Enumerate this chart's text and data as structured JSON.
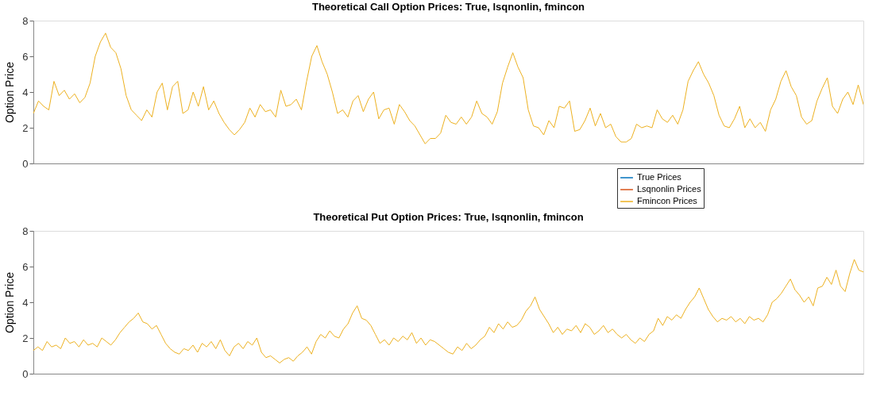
{
  "chart_data": [
    {
      "type": "line",
      "title": "Theoretical Call Option Prices: True, lsqnonlin, fmincon",
      "ylabel": "Option Price",
      "ylim": [
        0,
        8
      ],
      "yticks": [
        0,
        2,
        4,
        6,
        8
      ],
      "grid": false,
      "tick_labels": "y",
      "legend": "bottom right",
      "line_style": "solid",
      "marker": "none",
      "categories": [
        null,
        null,
        null,
        null,
        null,
        null,
        null,
        null,
        null,
        null,
        null,
        null,
        null,
        null,
        null,
        null,
        null,
        null,
        null,
        null,
        null,
        null,
        null,
        null,
        null,
        null,
        null,
        null,
        null,
        null,
        null,
        null,
        null,
        null,
        null,
        null,
        null,
        null,
        null,
        null,
        null,
        null,
        null,
        null,
        null,
        null,
        null,
        null,
        null,
        null,
        null,
        null,
        null,
        null,
        null,
        null,
        null,
        null,
        null,
        null,
        null,
        null,
        null,
        null,
        null,
        null,
        null,
        null,
        null,
        null,
        null,
        null,
        null,
        null,
        null,
        null,
        null,
        null,
        null,
        null,
        null,
        null,
        null,
        null,
        null,
        null,
        null,
        null,
        null,
        null,
        null,
        null,
        null,
        null,
        null,
        null,
        null,
        null,
        null,
        null,
        null,
        null,
        null,
        null,
        null,
        null,
        null,
        null,
        null,
        null,
        null,
        null,
        null,
        null,
        null,
        null,
        null,
        null,
        null,
        null,
        null,
        null,
        null,
        null,
        null,
        null,
        null,
        null,
        null,
        null,
        null,
        null,
        null,
        null,
        null,
        null,
        null,
        null,
        null,
        null,
        null,
        null,
        null,
        null,
        null,
        null,
        null,
        null,
        null,
        null,
        null,
        null,
        null,
        null,
        null,
        null,
        null,
        null,
        null,
        null,
        null,
        null
      ],
      "series": [
        {
          "name": "True Prices",
          "color": "#0072bd",
          "values": [
            null,
            null,
            null,
            null,
            null,
            null,
            null,
            null,
            null,
            null,
            null,
            null,
            null,
            null,
            null,
            null,
            null,
            null,
            null,
            null,
            null,
            null,
            null,
            null,
            null,
            null,
            null,
            null,
            null,
            null,
            null,
            null,
            null,
            null,
            null,
            null,
            null,
            null,
            null,
            null,
            null,
            null,
            null,
            null,
            null,
            null,
            null,
            null,
            null,
            null,
            null,
            null,
            null,
            null,
            null,
            null,
            null,
            null,
            null,
            null,
            null,
            null,
            null,
            null,
            null,
            null,
            null,
            null,
            null,
            null,
            null,
            null,
            null,
            null,
            null,
            null,
            null,
            null,
            null,
            null,
            null,
            null,
            null,
            null,
            null,
            null,
            null,
            null,
            null,
            null,
            null,
            null,
            null,
            null,
            null,
            null,
            null,
            null,
            null,
            null,
            null,
            null,
            null,
            null,
            null,
            null,
            null,
            null,
            null,
            null,
            null,
            null,
            null,
            null,
            null,
            null,
            null,
            null,
            null,
            null,
            null,
            null,
            null,
            null,
            null,
            null,
            null,
            null,
            null,
            null,
            null,
            null,
            null,
            null,
            null,
            null,
            null,
            null,
            null,
            null,
            null,
            null,
            null,
            null,
            null,
            null,
            null,
            null,
            null,
            null,
            null,
            null,
            null,
            null,
            null,
            null,
            null,
            null,
            null,
            null,
            null,
            null
          ]
        },
        {
          "name": "Lsqnonlin Prices",
          "color": "#d95319",
          "values": [
            null,
            null,
            null,
            null,
            null,
            null,
            null,
            null,
            null,
            null,
            null,
            null,
            null,
            null,
            null,
            null,
            null,
            null,
            null,
            null,
            null,
            null,
            null,
            null,
            null,
            null,
            null,
            null,
            null,
            null,
            null,
            null,
            null,
            null,
            null,
            null,
            null,
            null,
            null,
            null,
            null,
            null,
            null,
            null,
            null,
            null,
            null,
            null,
            null,
            null,
            null,
            null,
            null,
            null,
            null,
            null,
            null,
            null,
            null,
            null,
            null,
            null,
            null,
            null,
            null,
            null,
            null,
            null,
            null,
            null,
            null,
            null,
            null,
            null,
            null,
            null,
            null,
            null,
            null,
            null,
            null,
            null,
            null,
            null,
            null,
            null,
            null,
            null,
            null,
            null,
            null,
            null,
            null,
            null,
            null,
            null,
            null,
            null,
            null,
            null,
            null,
            null,
            null,
            null,
            null,
            null,
            null,
            null,
            null,
            null,
            null,
            null,
            null,
            null,
            null,
            null,
            null,
            null,
            null,
            null,
            null,
            null,
            null,
            null,
            null,
            null,
            null,
            null,
            null,
            null,
            null,
            null,
            null,
            null,
            null,
            null,
            null,
            null,
            null,
            null,
            null,
            null,
            null,
            null,
            null,
            null,
            null,
            null,
            null,
            null,
            null,
            null,
            null,
            null,
            null,
            null,
            null,
            null,
            null,
            null,
            null,
            null
          ]
        },
        {
          "name": "Fmincon Prices",
          "color": "#edb120",
          "values": [
            2.8,
            3.5,
            3.2,
            3.0,
            4.6,
            3.8,
            4.1,
            3.6,
            3.9,
            3.4,
            3.7,
            4.5,
            6.0,
            6.8,
            7.3,
            6.5,
            6.2,
            5.3,
            3.8,
            3.0,
            2.7,
            2.4,
            3.0,
            2.6,
            4.0,
            4.5,
            3.0,
            4.3,
            4.6,
            2.8,
            3.0,
            4.0,
            3.2,
            4.3,
            3.0,
            3.5,
            2.8,
            2.3,
            1.9,
            1.6,
            1.9,
            2.3,
            3.1,
            2.6,
            3.3,
            2.9,
            3.0,
            2.6,
            4.1,
            3.2,
            3.3,
            3.6,
            3.0,
            4.6,
            6.0,
            6.6,
            5.7,
            5.0,
            4.0,
            2.8,
            3.0,
            2.6,
            3.5,
            3.8,
            2.9,
            3.6,
            4.0,
            2.5,
            3.0,
            3.1,
            2.2,
            3.3,
            2.9,
            2.4,
            2.1,
            1.6,
            1.1,
            1.4,
            1.4,
            1.7,
            2.7,
            2.3,
            2.2,
            2.6,
            2.2,
            2.6,
            3.5,
            2.8,
            2.6,
            2.2,
            2.9,
            4.5,
            5.4,
            6.2,
            5.4,
            4.8,
            3.0,
            2.1,
            2.0,
            1.6,
            2.4,
            2.0,
            3.2,
            3.1,
            3.5,
            1.8,
            1.9,
            2.4,
            3.1,
            2.1,
            2.8,
            2.0,
            2.2,
            1.5,
            1.2,
            1.2,
            1.4,
            2.2,
            2.0,
            2.1,
            2.0,
            3.0,
            2.5,
            2.3,
            2.7,
            2.2,
            3.0,
            4.6,
            5.2,
            5.7,
            5.0,
            4.5,
            3.8,
            2.7,
            2.1,
            2.0,
            2.5,
            3.2,
            2.0,
            2.5,
            2.0,
            2.3,
            1.8,
            3.0,
            3.6,
            4.6,
            5.2,
            4.3,
            3.8,
            2.6,
            2.2,
            2.4,
            3.5,
            4.2,
            4.8,
            3.2,
            2.8,
            3.6,
            4.0,
            3.3,
            4.4,
            3.3
          ]
        }
      ]
    },
    {
      "type": "line",
      "title": "Theoretical Put Option Prices: True, lsqnonlin, fmincon",
      "ylabel": "Option Price",
      "ylim": [
        0,
        8
      ],
      "yticks": [
        0,
        2,
        4,
        6,
        8
      ],
      "grid": false,
      "tick_labels": "y",
      "line_style": "solid",
      "marker": "none",
      "categories": [
        null,
        null,
        null,
        null,
        null,
        null,
        null,
        null,
        null,
        null,
        null,
        null,
        null,
        null,
        null,
        null,
        null,
        null,
        null,
        null,
        null,
        null,
        null,
        null,
        null,
        null,
        null,
        null,
        null,
        null,
        null,
        null,
        null,
        null,
        null,
        null,
        null,
        null,
        null,
        null,
        null,
        null,
        null,
        null,
        null,
        null,
        null,
        null,
        null,
        null,
        null,
        null,
        null,
        null,
        null,
        null,
        null,
        null,
        null,
        null,
        null,
        null,
        null,
        null,
        null,
        null,
        null,
        null,
        null,
        null,
        null,
        null,
        null,
        null,
        null,
        null,
        null,
        null,
        null,
        null,
        null,
        null,
        null,
        null,
        null,
        null,
        null,
        null,
        null,
        null,
        null,
        null,
        null,
        null,
        null,
        null,
        null,
        null,
        null,
        null,
        null,
        null,
        null,
        null,
        null,
        null,
        null,
        null,
        null,
        null,
        null,
        null,
        null,
        null,
        null,
        null,
        null,
        null,
        null,
        null,
        null,
        null,
        null,
        null,
        null,
        null,
        null,
        null,
        null,
        null,
        null,
        null,
        null,
        null,
        null,
        null,
        null,
        null,
        null,
        null,
        null,
        null,
        null,
        null,
        null,
        null,
        null,
        null,
        null,
        null,
        null,
        null,
        null,
        null,
        null,
        null,
        null,
        null,
        null,
        null,
        null,
        null,
        null,
        null,
        null,
        null,
        null,
        null,
        null,
        null,
        null,
        null,
        null,
        null,
        null,
        null,
        null,
        null,
        null,
        null,
        null,
        null,
        null
      ],
      "series": [
        {
          "color": "#edb120",
          "values": [
            1.3,
            1.5,
            1.3,
            1.8,
            1.5,
            1.6,
            1.4,
            2.0,
            1.7,
            1.8,
            1.5,
            1.9,
            1.6,
            1.7,
            1.5,
            2.0,
            1.8,
            1.6,
            1.9,
            2.3,
            2.6,
            2.9,
            3.1,
            3.4,
            2.9,
            2.8,
            2.5,
            2.7,
            2.2,
            1.7,
            1.4,
            1.2,
            1.1,
            1.4,
            1.3,
            1.6,
            1.2,
            1.7,
            1.5,
            1.8,
            1.4,
            1.9,
            1.3,
            1.0,
            1.5,
            1.7,
            1.4,
            1.8,
            1.6,
            2.0,
            1.2,
            0.9,
            1.0,
            0.8,
            0.6,
            0.8,
            0.9,
            0.7,
            1.0,
            1.2,
            1.5,
            1.1,
            1.8,
            2.2,
            2.0,
            2.4,
            2.1,
            2.0,
            2.5,
            2.8,
            3.4,
            3.8,
            3.1,
            3.0,
            2.7,
            2.2,
            1.7,
            1.9,
            1.6,
            2.0,
            1.8,
            2.1,
            1.9,
            2.3,
            1.7,
            2.0,
            1.6,
            1.9,
            1.8,
            1.6,
            1.4,
            1.2,
            1.1,
            1.5,
            1.3,
            1.7,
            1.4,
            1.6,
            1.9,
            2.1,
            2.6,
            2.3,
            2.8,
            2.5,
            2.9,
            2.6,
            2.7,
            3.0,
            3.5,
            3.8,
            4.3,
            3.6,
            3.2,
            2.8,
            2.3,
            2.6,
            2.2,
            2.5,
            2.4,
            2.7,
            2.3,
            2.8,
            2.6,
            2.2,
            2.4,
            2.7,
            2.3,
            2.5,
            2.2,
            2.0,
            2.2,
            1.9,
            1.7,
            2.0,
            1.8,
            2.2,
            2.4,
            3.1,
            2.7,
            3.2,
            3.0,
            3.3,
            3.1,
            3.6,
            4.0,
            4.3,
            4.8,
            4.2,
            3.6,
            3.2,
            2.9,
            3.1,
            3.0,
            3.2,
            2.9,
            3.1,
            2.8,
            3.2,
            3.0,
            3.1,
            2.9,
            3.3,
            4.0,
            4.2,
            4.5,
            4.9,
            5.3,
            4.7,
            4.4,
            4.0,
            4.3,
            3.8,
            4.8,
            4.9,
            5.4,
            5.0,
            5.8,
            4.9,
            4.6,
            5.6,
            6.4,
            5.8,
            5.7
          ]
        }
      ]
    }
  ]
}
